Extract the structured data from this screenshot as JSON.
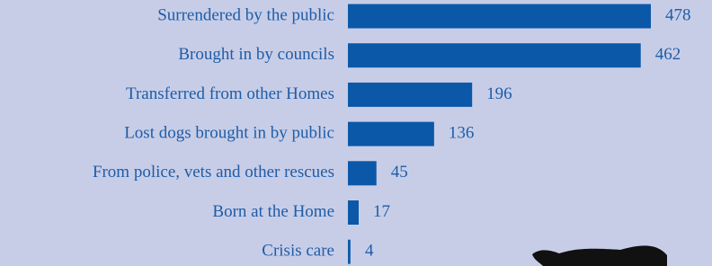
{
  "chart_data": {
    "type": "bar",
    "orientation": "horizontal",
    "categories": [
      "Surrendered by the public",
      "Brought in by councils",
      "Transferred from other Homes",
      "Lost dogs brought in by public",
      "From police, vets and other rescues",
      "Born at the Home",
      "Crisis care"
    ],
    "values": [
      478,
      462,
      196,
      136,
      45,
      17,
      4
    ],
    "color": "#0b58a8"
  }
}
